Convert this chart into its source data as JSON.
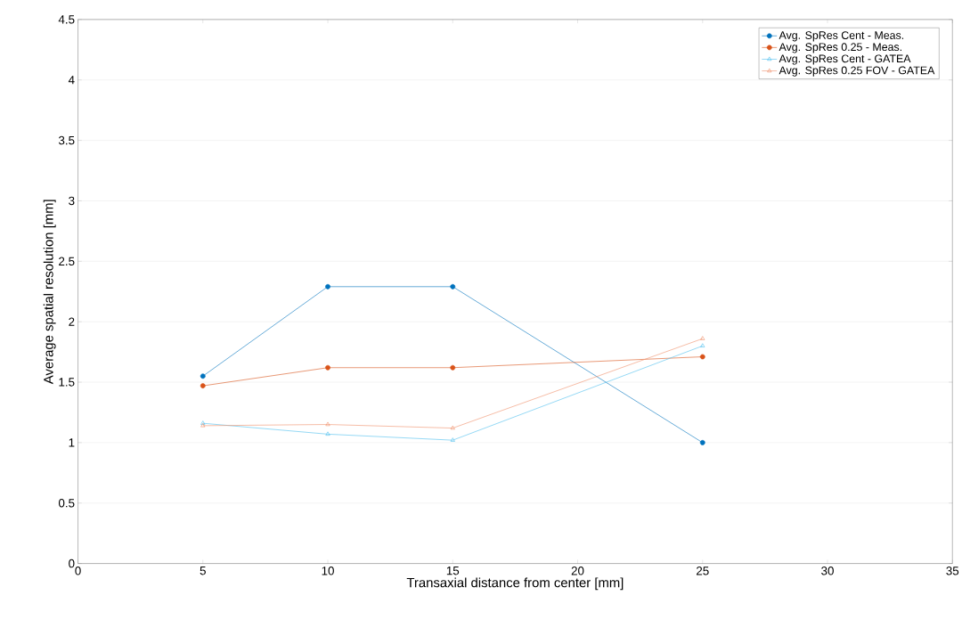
{
  "chart_data": {
    "type": "line",
    "xlabel": "Transaxial distance from center [mm]",
    "ylabel": "Average spatial resolution [mm]",
    "xlim": [
      0,
      35
    ],
    "xticks": [
      0,
      5,
      10,
      15,
      20,
      25,
      30,
      35
    ],
    "ylim": [
      0,
      4.5
    ],
    "yticks": [
      0,
      0.5,
      1,
      1.5,
      2,
      2.5,
      3,
      3.5,
      4,
      4.5
    ],
    "grid": "y",
    "legend": "top right",
    "line_style": "solid",
    "x": [
      5,
      10,
      15,
      25
    ],
    "series": [
      {
        "name": "Avg. SpRes Cent - Meas.",
        "color": "#0072bd",
        "marker": "circle",
        "values": [
          1.55,
          2.29,
          2.29,
          1.0
        ]
      },
      {
        "name": "Avg. SpRes 0.25 - Meas.",
        "color": "#d95319",
        "marker": "circle",
        "values": [
          1.47,
          1.62,
          1.62,
          1.71
        ]
      },
      {
        "name": "Avg. SpRes Cent - GATEA",
        "color": "#4dbeee",
        "marker": "triangle",
        "values": [
          1.16,
          1.07,
          1.02,
          1.8
        ]
      },
      {
        "name": "Avg. SpRes 0.25 FOV - GATEA",
        "color": "#f0906a",
        "marker": "triangle",
        "values": [
          1.14,
          1.15,
          1.12,
          1.86
        ]
      }
    ]
  }
}
